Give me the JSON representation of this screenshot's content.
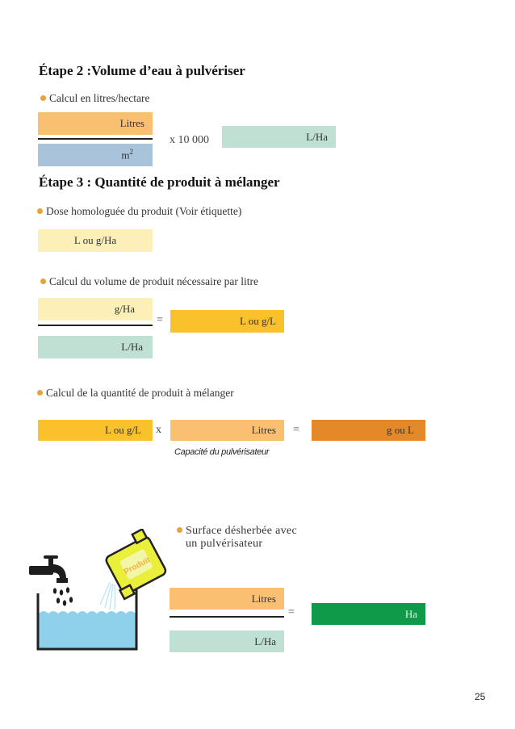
{
  "step2": {
    "title": "Étape 2 :Volume d’eau à pulvériser",
    "bullet": "Calcul en litres/hectare",
    "numerator": "Litres",
    "denominator_base": "m",
    "denominator_exp": "2",
    "multiplier": "x 10 000",
    "result": "L/Ha"
  },
  "step3": {
    "title": "Étape 3 : Quantité de produit à mélanger",
    "dose_bullet": "Dose homologuée du produit (Voir étiquette)",
    "dose_box": "L ou g/Ha",
    "volume_bullet": "Calcul du volume de produit nécessaire par litre",
    "volume_numerator": "g/Ha",
    "volume_denominator": "L/Ha",
    "volume_equals": "=",
    "volume_result": "L ou g/L",
    "quantity_bullet": "Calcul de la quantité de produit à mélanger",
    "quantity_box1": "L ou g/L",
    "quantity_times": "x",
    "quantity_box2": "Litres",
    "quantity_caption": "Capacité du pulvérisateur",
    "quantity_equals": "=",
    "quantity_result": "g ou L"
  },
  "surface": {
    "bullet_line1": "Surface désherbée avec",
    "bullet_line2": "un pulvérisateur",
    "numerator": "Litres",
    "denominator": "L/Ha",
    "equals": "=",
    "result": "Ha"
  },
  "illustration": {
    "can_label": "Produit",
    "icons": [
      "faucet-icon",
      "chemical-can-icon",
      "water-tank-icon"
    ]
  },
  "page_number": "25",
  "colors": {
    "bullet_dot": "#e8a23c",
    "peach": "#fbbf72",
    "blue": "#a9c3da",
    "mint": "#bfe0d2",
    "cream": "#fdefb8",
    "yellow": "#f9c22c",
    "orange": "#e4892a",
    "green": "#0f9a4a",
    "water": "#8fd0ea"
  }
}
